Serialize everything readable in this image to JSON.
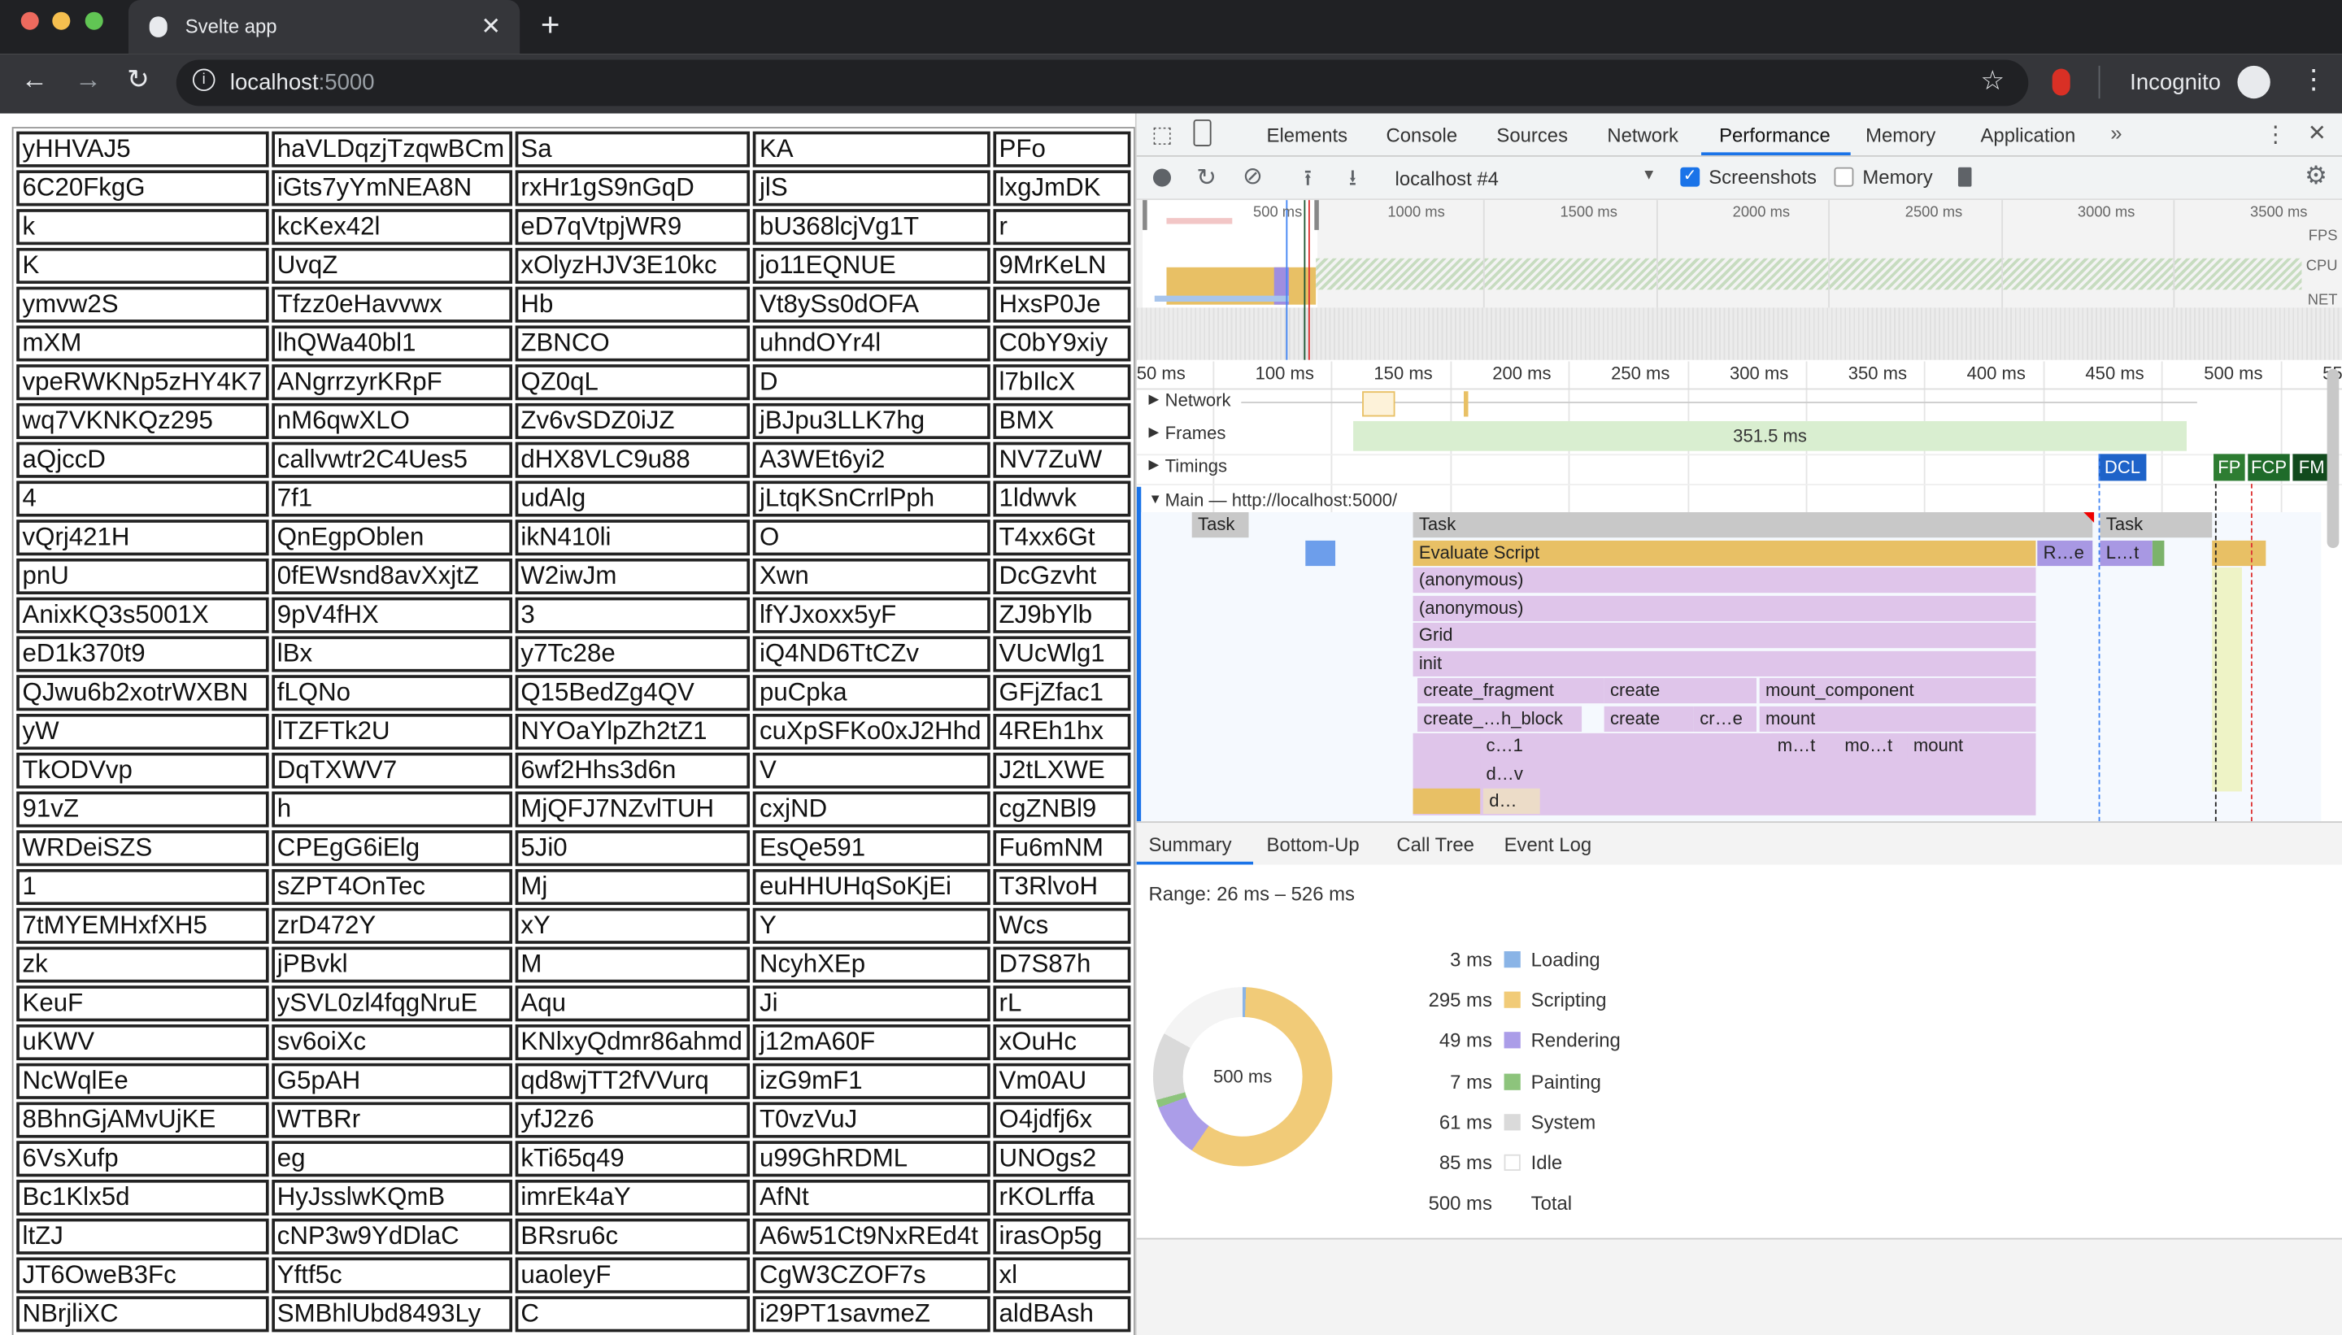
{
  "browser": {
    "tab_title": "Svelte app",
    "url_host": "localhost",
    "url_port": ":5000",
    "profile": "Incognito"
  },
  "table": {
    "rows": [
      [
        "yHHVAJ5",
        "haVLDqzjTzqwBCm",
        "Sa",
        "KA",
        "PFo"
      ],
      [
        "6C20FkgG",
        "iGts7yYmNEA8N",
        "rxHr1gS9nGqD",
        "jlS",
        "lxgJmDK"
      ],
      [
        "k",
        "kcKex42l",
        "eD7qVtpjWR9",
        "bU368lcjVg1T",
        "r"
      ],
      [
        "K",
        "UvqZ",
        "xOlyzHJV3E10kc",
        "jo11EQNUE",
        "9MrKeLN"
      ],
      [
        "ymvw2S",
        "Tfzz0eHavvwx",
        "Hb",
        "Vt8ySs0dOFA",
        "HxsP0Je"
      ],
      [
        "mXM",
        "lhQWa40bl1",
        "ZBNCO",
        "uhndOYr4l",
        "C0bY9xiy"
      ],
      [
        "vpeRWKNp5zHY4K7",
        "ANgrrzyrKRpF",
        "QZ0qL",
        "D",
        "l7bIlcX"
      ],
      [
        "wq7VKNKQz295",
        "nM6qwXLO",
        "Zv6vSDZ0iJZ",
        "jBJpu3LLK7hg",
        "BMX"
      ],
      [
        "aQjccD",
        "callvwtr2C4Ues5",
        "dHX8VLC9u88",
        "A3WEt6yi2",
        "NV7ZuW"
      ],
      [
        "4",
        "7f1",
        "udAlg",
        "jLtqKSnCrrlPph",
        "1ldwvk"
      ],
      [
        "vQrj421H",
        "QnEgpOblen",
        "ikN410li",
        "O",
        "T4xx6Gt"
      ],
      [
        "pnU",
        "0fEWsnd8avXxjtZ",
        "W2iwJm",
        "Xwn",
        "DcGzvht"
      ],
      [
        "AnixKQ3s5001X",
        "9pV4fHX",
        "3",
        "lfYJxoxx5yF",
        "ZJ9bYlb"
      ],
      [
        "eD1k370t9",
        "lBx",
        "y7Tc28e",
        "iQ4ND6TtCZv",
        "VUcWlg1"
      ],
      [
        "QJwu6b2xotrWXBN",
        "fLQNo",
        "Q15BedZg4QV",
        "puCpka",
        "GFjZfac1"
      ],
      [
        "yW",
        "lTZFTk2U",
        "NYOaYlpZh2tZ1",
        "cuXpSFKo0xJ2Hhd",
        "4REh1hx"
      ],
      [
        "TkODVvp",
        "DqTXWV7",
        "6wf2Hhs3d6n",
        "V",
        "J2tLXWE"
      ],
      [
        "91vZ",
        "h",
        "MjQFJ7NZvlTUH",
        "cxjND",
        "cgZNBl9"
      ],
      [
        "WRDeiSZS",
        "CPEgG6iElg",
        "5Ji0",
        "EsQe591",
        "Fu6mNM"
      ],
      [
        "1",
        "sZPT4OnTec",
        "Mj",
        "euHHUHqSoKjEi",
        "T3RlvoH"
      ],
      [
        "7tMYEMHxfXH5",
        "zrD472Y",
        "xY",
        "Y",
        "Wcs"
      ],
      [
        "zk",
        "jPBvkl",
        "M",
        "NcyhXEp",
        "D7S87h"
      ],
      [
        "KeuF",
        "ySVL0zl4fqgNruE",
        "Aqu",
        "Ji",
        "rL"
      ],
      [
        "uKWV",
        "sv6oiXc",
        "KNlxyQdmr86ahmd",
        "j12mA60F",
        "xOuHc"
      ],
      [
        "NcWqlEe",
        "G5pAH",
        "qd8wjTT2fVVurq",
        "izG9mF1",
        "Vm0AU"
      ],
      [
        "8BhnGjAMvUjKE",
        "WTBRr",
        "yfJ2z6",
        "T0vzVuJ",
        "O4jdfj6x"
      ],
      [
        "6VsXufp",
        "eg",
        "kTi65q49",
        "u99GhRDML",
        "UNOgs2"
      ],
      [
        "Bc1Klx5d",
        "HyJsslwKQmB",
        "imrEk4aY",
        "AfNt",
        "rKOLrffa"
      ],
      [
        "ltZJ",
        "cNP3w9YdDlaC",
        "BRsru6c",
        "A6w51Ct9NxREd4t",
        "irasOp5g"
      ],
      [
        "JT6OweB3Fc",
        "Yftf5c",
        "uaoleyF",
        "CgW3CZOF7s",
        "xl"
      ],
      [
        "NBrjliXC",
        "SMBhlUbd8493Ly",
        "C",
        "i29PT1savmeZ",
        "aldBAsh"
      ]
    ]
  },
  "devtools": {
    "tabs": [
      "Elements",
      "Console",
      "Sources",
      "Network",
      "Performance",
      "Memory",
      "Application"
    ],
    "active_tab": "Performance",
    "toolbar": {
      "profile_select": "localhost #4",
      "screenshots_label": "Screenshots",
      "screenshots_checked": true,
      "memory_label": "Memory",
      "memory_checked": false
    },
    "overview": {
      "ticks": [
        "500 ms",
        "1000 ms",
        "1500 ms",
        "2000 ms",
        "2500 ms",
        "3000 ms",
        "3500 ms"
      ],
      "tracks": [
        "FPS",
        "CPU",
        "NET"
      ]
    },
    "flame": {
      "ticks": [
        "50 ms",
        "100 ms",
        "150 ms",
        "200 ms",
        "250 ms",
        "300 ms",
        "350 ms",
        "400 ms",
        "450 ms",
        "500 ms",
        "55"
      ],
      "tracks": {
        "network": "Network",
        "frames": "Frames",
        "frames_duration": "351.5 ms",
        "timings": "Timings",
        "main": "Main — http://localhost:5000/"
      },
      "markers": {
        "dcl": "DCL",
        "fp": "FP",
        "fcp": "FCP",
        "fm": "FM"
      },
      "bars": {
        "task1": "Task",
        "task2": "Task",
        "task3": "Task",
        "evaluate": "Evaluate Script",
        "re": "R…e",
        "lt": "L…t",
        "anon1": "(anonymous)",
        "anon2": "(anonymous)",
        "grid": "Grid",
        "init": "init",
        "create_fragment": "create_fragment",
        "create1": "create",
        "mount_component": "mount_component",
        "create_block": "create_…h_block",
        "create2": "create",
        "cre": "cr…e",
        "mount1": "mount",
        "c1": "c…1",
        "mt": "m…t",
        "mot": "mo…t",
        "mount2": "mount",
        "dv": "d…v",
        "d": "d…"
      }
    },
    "bottom_tabs": [
      "Summary",
      "Bottom-Up",
      "Call Tree",
      "Event Log"
    ],
    "summary": {
      "range": "Range: 26 ms – 526 ms",
      "center_label": "500 ms",
      "items": [
        {
          "value": "3 ms",
          "label": "Loading",
          "ms": 3,
          "color": "#8ab4e6"
        },
        {
          "value": "295 ms",
          "label": "Scripting",
          "ms": 295,
          "color": "#f1cb78"
        },
        {
          "value": "49 ms",
          "label": "Rendering",
          "ms": 49,
          "color": "#ab9de8"
        },
        {
          "value": "7 ms",
          "label": "Painting",
          "ms": 7,
          "color": "#8dc47c"
        },
        {
          "value": "61 ms",
          "label": "System",
          "ms": 61,
          "color": "#dadada"
        },
        {
          "value": "85 ms",
          "label": "Idle",
          "ms": 85,
          "color": "#ffffff"
        }
      ],
      "total_value": "500 ms",
      "total_label": "Total"
    }
  }
}
